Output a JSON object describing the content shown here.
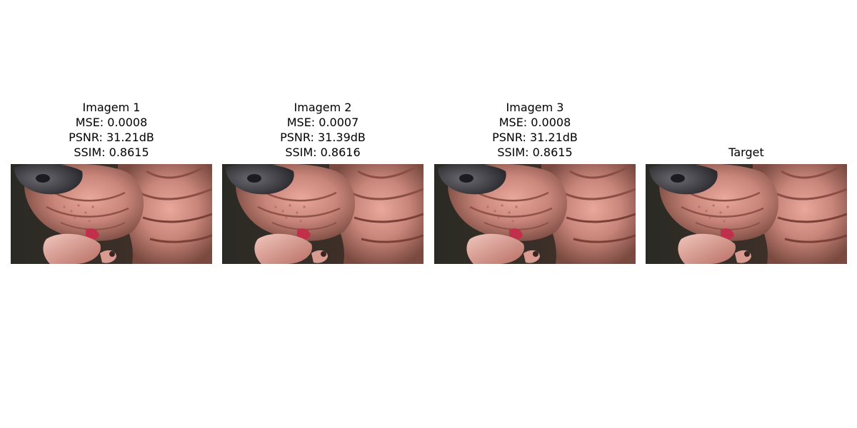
{
  "figure": {
    "panels": [
      {
        "title_lines": [
          "Imagem 1",
          "MSE: 0.0008",
          "PSNR: 31.21dB",
          "SSIM: 0.8615"
        ],
        "mse": 0.0008,
        "psnr_db": 31.21,
        "ssim": 0.8615,
        "image": "close-up photo of a wrinkled hairless dog (Shar Pei-like) muzzle licking pink object"
      },
      {
        "title_lines": [
          "Imagem 2",
          "MSE: 0.0007",
          "PSNR: 31.39dB",
          "SSIM: 0.8616"
        ],
        "mse": 0.0007,
        "psnr_db": 31.39,
        "ssim": 0.8616,
        "image": "close-up photo of a wrinkled hairless dog muzzle licking pink object"
      },
      {
        "title_lines": [
          "Imagem 3",
          "MSE: 0.0008",
          "PSNR: 31.21dB",
          "SSIM: 0.8615"
        ],
        "mse": 0.0008,
        "psnr_db": 31.21,
        "ssim": 0.8615,
        "image": "close-up photo of a wrinkled hairless dog muzzle licking pink object"
      },
      {
        "title_lines": [
          "Target"
        ],
        "image": "reference close-up photo of a wrinkled hairless dog muzzle licking pink object"
      }
    ]
  }
}
